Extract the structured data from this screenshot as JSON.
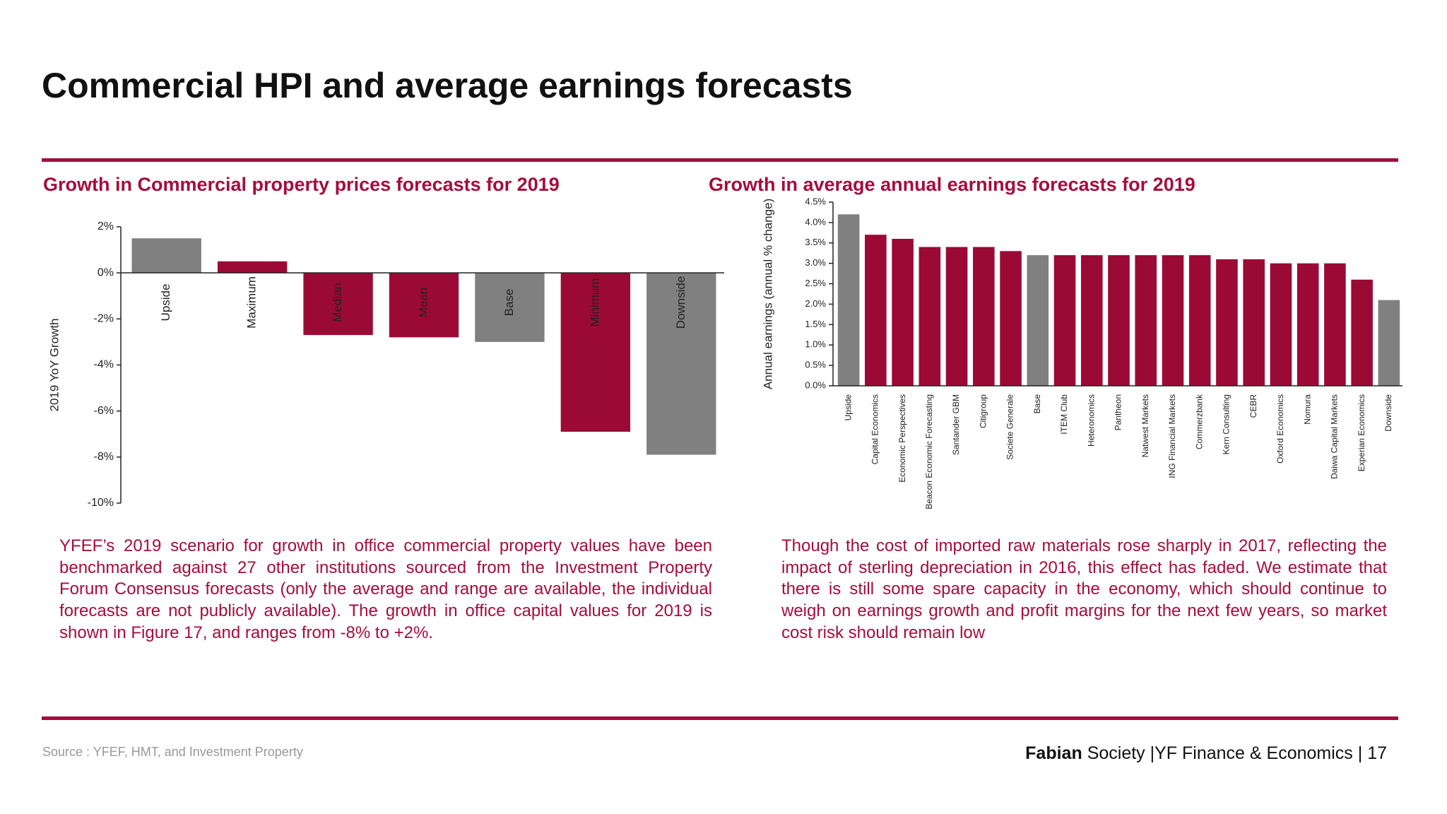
{
  "title": "Commercial HPI and average earnings forecasts",
  "chart_data": [
    {
      "type": "bar",
      "title": "Growth in Commercial property prices forecasts for 2019",
      "y_label": "2019 YoY Growth",
      "categories": [
        "Upside",
        "Maximum",
        "Median",
        "Mean",
        "Base",
        "Minimum",
        "Downside"
      ],
      "values": [
        1.5,
        0.5,
        -2.7,
        -2.8,
        -3.0,
        -6.9,
        -7.9
      ],
      "colors": [
        "#808080",
        "#9b0a35",
        "#9b0a35",
        "#9b0a35",
        "#808080",
        "#9b0a35",
        "#808080"
      ],
      "ylim": [
        -10,
        2
      ],
      "yticks": [
        {
          "value": 2,
          "label": "2%"
        },
        {
          "value": 0,
          "label": "0%"
        },
        {
          "value": -2,
          "label": "-2%"
        },
        {
          "value": -4,
          "label": "-4%"
        },
        {
          "value": -6,
          "label": "-6%"
        },
        {
          "value": -8,
          "label": "-8%"
        },
        {
          "value": -10,
          "label": "-10%"
        }
      ]
    },
    {
      "type": "bar",
      "title": "Growth in average annual earnings forecasts for 2019",
      "y_label": "Annual earnings (annual % change)",
      "categories": [
        "Upside",
        "Capital Economics",
        "Economic Perspectives",
        "Beacon Economic Forecasting",
        "Santander GBM",
        "Citigroup",
        "Societe Generale",
        "Base",
        "ITEM Club",
        "Heteronomics",
        "Pantheon",
        "Natwest Markets",
        "ING Financial Markets",
        "Commerzbank",
        "Kern Consulting",
        "CEBR",
        "Oxford Economics",
        "Nomura",
        "Daiwa Capital Markets",
        "Experian Economics",
        "Downside"
      ],
      "values": [
        4.2,
        3.7,
        3.6,
        3.4,
        3.4,
        3.4,
        3.3,
        3.2,
        3.2,
        3.2,
        3.2,
        3.2,
        3.2,
        3.2,
        3.1,
        3.1,
        3.0,
        3.0,
        3.0,
        2.6,
        2.1
      ],
      "colors": [
        "#808080",
        "#9b0a35",
        "#9b0a35",
        "#9b0a35",
        "#9b0a35",
        "#9b0a35",
        "#9b0a35",
        "#808080",
        "#9b0a35",
        "#9b0a35",
        "#9b0a35",
        "#9b0a35",
        "#9b0a35",
        "#9b0a35",
        "#9b0a35",
        "#9b0a35",
        "#9b0a35",
        "#9b0a35",
        "#9b0a35",
        "#9b0a35",
        "#808080"
      ],
      "ylim": [
        0,
        4.5
      ],
      "yticks": [
        {
          "value": 0,
          "label": "0.0%"
        },
        {
          "value": 0.5,
          "label": "0.5%"
        },
        {
          "value": 1,
          "label": "1.0%"
        },
        {
          "value": 1.5,
          "label": "1.5%"
        },
        {
          "value": 2,
          "label": "2.0%"
        },
        {
          "value": 2.5,
          "label": "2.5%"
        },
        {
          "value": 3,
          "label": "3.0%"
        },
        {
          "value": 3.5,
          "label": "3.5%"
        },
        {
          "value": 4,
          "label": "4.0%"
        },
        {
          "value": 4.5,
          "label": "4.5%"
        }
      ]
    }
  ],
  "paragraphs": [
    "YFEF’s 2019 scenario for growth in office commercial property values have been benchmarked against 27 other institutions sourced from the Investment Property Forum Consensus forecasts (only the average and range are available, the individual forecasts are not publicly available). The growth in office capital values for 2019 is shown in Figure 17, and ranges from -8% to +2%.",
    "Though the cost of imported raw materials rose sharply in 2017, reflecting the impact of sterling depreciation in 2016, this effect has faded. We estimate that there is still some spare capacity in the economy, which should continue to weigh on earnings growth and profit margins for the next few years, so market cost risk should remain low"
  ],
  "footer": {
    "source": "Source : YFEF, HMT, and Investment Property",
    "brand_bold": "Fabian",
    "brand_rest": "Society",
    "org": "|YF Finance & Economics |",
    "page": "17"
  }
}
